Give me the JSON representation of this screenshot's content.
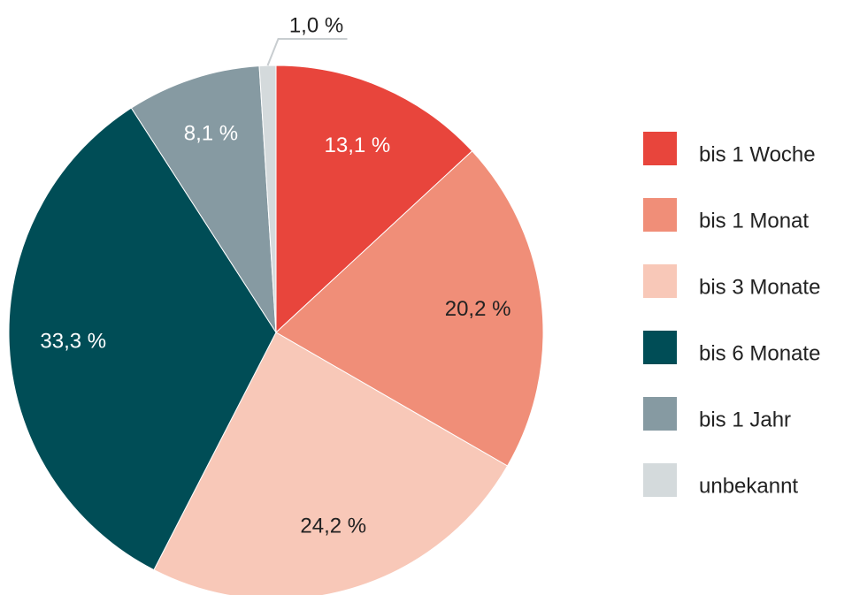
{
  "chart_data": {
    "type": "pie",
    "categories": [
      "bis 1 Woche",
      "bis 1 Monat",
      "bis 3 Monate",
      "bis 6 Monate",
      "bis 1 Jahr",
      "unbekannt"
    ],
    "values": [
      13.1,
      20.2,
      24.2,
      33.3,
      8.1,
      1.0
    ],
    "value_labels": [
      "13,1 %",
      "20,2 %",
      "24,2 %",
      "33,3 %",
      "8,1 %",
      "1,0 %"
    ],
    "colors": [
      "#e8453c",
      "#f08e78",
      "#f8c8b8",
      "#004d56",
      "#869aa2",
      "#d4dadc"
    ],
    "legend": "right"
  }
}
